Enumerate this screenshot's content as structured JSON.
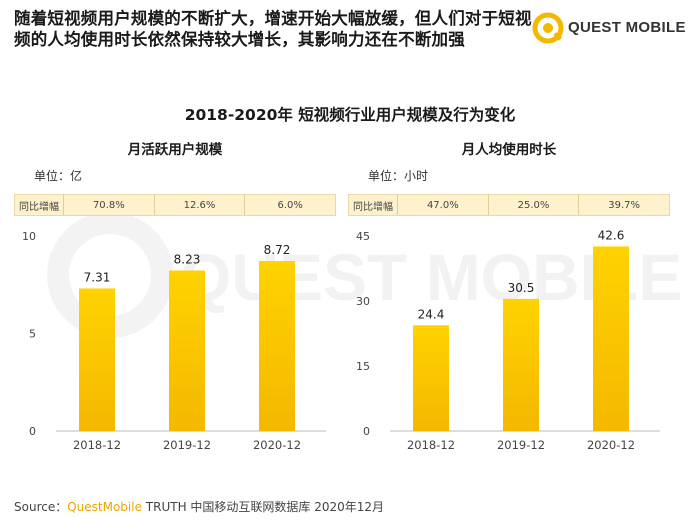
{
  "headline": "随着短视频用户规模的不断扩大，增速开始大幅放缓，但人们对于短视频的人均使用时长依然保持较大增长，其影响力还在不断加强",
  "logo": {
    "text": "QUEST MOBILE",
    "watermark_text": "QUEST MOBILE"
  },
  "main_title": "2018-2020年 短视频行业用户规模及行为变化",
  "source": {
    "prefix": "Source：",
    "brand": "QuestMobile",
    "rest": " TRUTH 中国移动互联网数据库 2020年12月"
  },
  "colors": {
    "bar_top": "#ffd200",
    "bar_bottom": "#f4b800",
    "accent": "#f5b800",
    "yoy_bg": "#fdf2cc"
  },
  "chart_data": [
    {
      "type": "bar",
      "title": "月活跃用户规模",
      "unit_label": "单位：亿",
      "yoy_label": "同比增幅",
      "yoy": [
        "70.8%",
        "12.6%",
        "6.0%"
      ],
      "categories": [
        "2018-12",
        "2019-12",
        "2020-12"
      ],
      "values": [
        7.31,
        8.23,
        8.72
      ],
      "value_labels": [
        "7.31",
        "8.23",
        "8.72"
      ],
      "ylim": [
        0,
        10
      ],
      "yticks": [
        0,
        5,
        10
      ],
      "grid": false
    },
    {
      "type": "bar",
      "title": "月人均使用时长",
      "unit_label": "单位：小时",
      "yoy_label": "同比增幅",
      "yoy": [
        "47.0%",
        "25.0%",
        "39.7%"
      ],
      "categories": [
        "2018-12",
        "2019-12",
        "2020-12"
      ],
      "values": [
        24.4,
        30.5,
        42.6
      ],
      "value_labels": [
        "24.4",
        "30.5",
        "42.6"
      ],
      "ylim": [
        0,
        45
      ],
      "yticks": [
        0,
        15,
        30,
        45
      ],
      "grid": false
    }
  ]
}
